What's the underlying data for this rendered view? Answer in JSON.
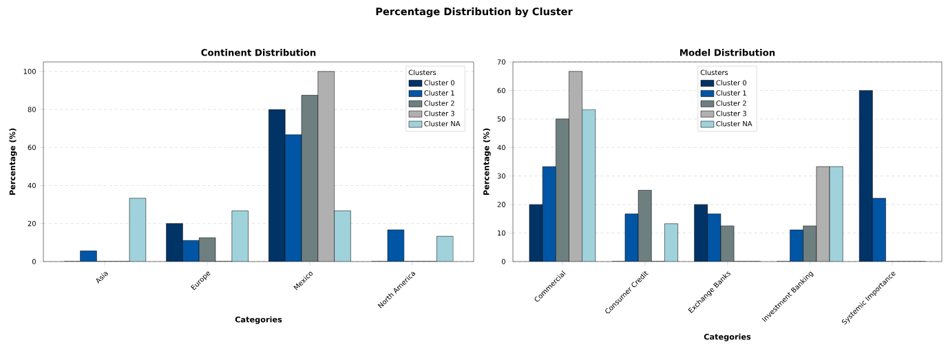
{
  "chart_data": [
    {
      "type": "bar",
      "title": "Continent Distribution",
      "xlabel": "Categories",
      "ylabel": "Percentage (%)",
      "legend_title": "Clusters",
      "annotations": [
        "Percentage Distribution by Cluster"
      ],
      "categories": [
        "Asia",
        "Europe",
        "Mexico",
        "North America"
      ],
      "series": [
        {
          "name": "Cluster 0",
          "color": "#003366",
          "values": [
            0,
            20,
            80,
            0
          ]
        },
        {
          "name": "Cluster 1",
          "color": "#0055a4",
          "values": [
            5.6,
            11.1,
            66.7,
            16.7
          ]
        },
        {
          "name": "Cluster 2",
          "color": "#6e7f80",
          "values": [
            0,
            12.5,
            87.5,
            0
          ]
        },
        {
          "name": "Cluster 3",
          "color": "#b0b0b0",
          "values": [
            0,
            0,
            100,
            0
          ]
        },
        {
          "name": "Cluster NA",
          "color": "#a0d2db",
          "values": [
            33.3,
            26.7,
            26.7,
            13.3
          ]
        }
      ],
      "ylim": [
        0,
        105
      ],
      "yticks": [
        0,
        20,
        40,
        60,
        80,
        100
      ],
      "grid": "y",
      "legend": "top right"
    },
    {
      "type": "bar",
      "title": "Model Distribution",
      "xlabel": "Categories",
      "ylabel": "Percentage (%)",
      "legend_title": "Clusters",
      "categories": [
        "Commercial",
        "Consumer Credit",
        "Exchange Banks",
        "Investment Banking",
        "Systemic Importance"
      ],
      "series": [
        {
          "name": "Cluster 0",
          "color": "#003366",
          "values": [
            20,
            0,
            20,
            0,
            60
          ]
        },
        {
          "name": "Cluster 1",
          "color": "#0055a4",
          "values": [
            33.3,
            16.7,
            16.7,
            11.1,
            22.2
          ]
        },
        {
          "name": "Cluster 2",
          "color": "#6e7f80",
          "values": [
            50,
            25,
            12.5,
            12.5,
            0
          ]
        },
        {
          "name": "Cluster 3",
          "color": "#b0b0b0",
          "values": [
            66.7,
            0,
            0,
            33.3,
            0
          ]
        },
        {
          "name": "Cluster NA",
          "color": "#a0d2db",
          "values": [
            53.3,
            13.3,
            0,
            33.3,
            0
          ]
        }
      ],
      "ylim": [
        0,
        70
      ],
      "yticks": [
        0,
        10,
        20,
        30,
        40,
        50,
        60,
        70
      ],
      "grid": "y",
      "legend": "top"
    }
  ]
}
